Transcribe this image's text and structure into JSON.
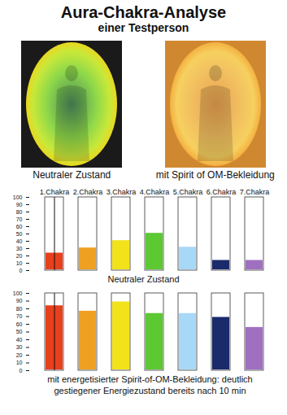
{
  "header": {
    "title": "Aura-Chakra-Analyse",
    "subtitle": "einer Testperson"
  },
  "images": [
    {
      "caption": "Neutraler Zustand"
    },
    {
      "caption": "mit Spirit of OM-Bekleidung"
    }
  ],
  "chart_data": [
    {
      "type": "bar",
      "title": "Neutraler Zustand",
      "categories": [
        "1.Chakra",
        "2.Chakra",
        "3.Chakra",
        "4.Chakra",
        "5.Chakra",
        "6.Chakra",
        "7.Chakra"
      ],
      "values": [
        25,
        32,
        42,
        52,
        33,
        15,
        15
      ],
      "colors": [
        "#e8401c",
        "#f0a020",
        "#f2e21a",
        "#5cc832",
        "#a8d8f8",
        "#1a2a6a",
        "#a070c0"
      ],
      "ylim": [
        0,
        100
      ],
      "yticks": [
        0,
        10,
        20,
        30,
        40,
        50,
        60,
        70,
        80,
        90,
        100
      ]
    },
    {
      "type": "bar",
      "title": "mit energetisierter Spirit-of-OM-Bekleidung: deutlich gestiegener Energiezustand bereits nach 10 min",
      "categories": [
        null,
        null,
        null,
        null,
        null,
        null,
        null
      ],
      "values": [
        85,
        78,
        90,
        75,
        75,
        70,
        57
      ],
      "colors": [
        "#e8401c",
        "#f0a020",
        "#f2e21a",
        "#5cc832",
        "#a8d8f8",
        "#1a2a6a",
        "#a070c0"
      ],
      "ylim": [
        0,
        100
      ],
      "yticks": [
        0,
        10,
        20,
        30,
        40,
        50,
        60,
        70,
        80,
        90,
        100
      ],
      "tick_labels": "y"
    }
  ]
}
